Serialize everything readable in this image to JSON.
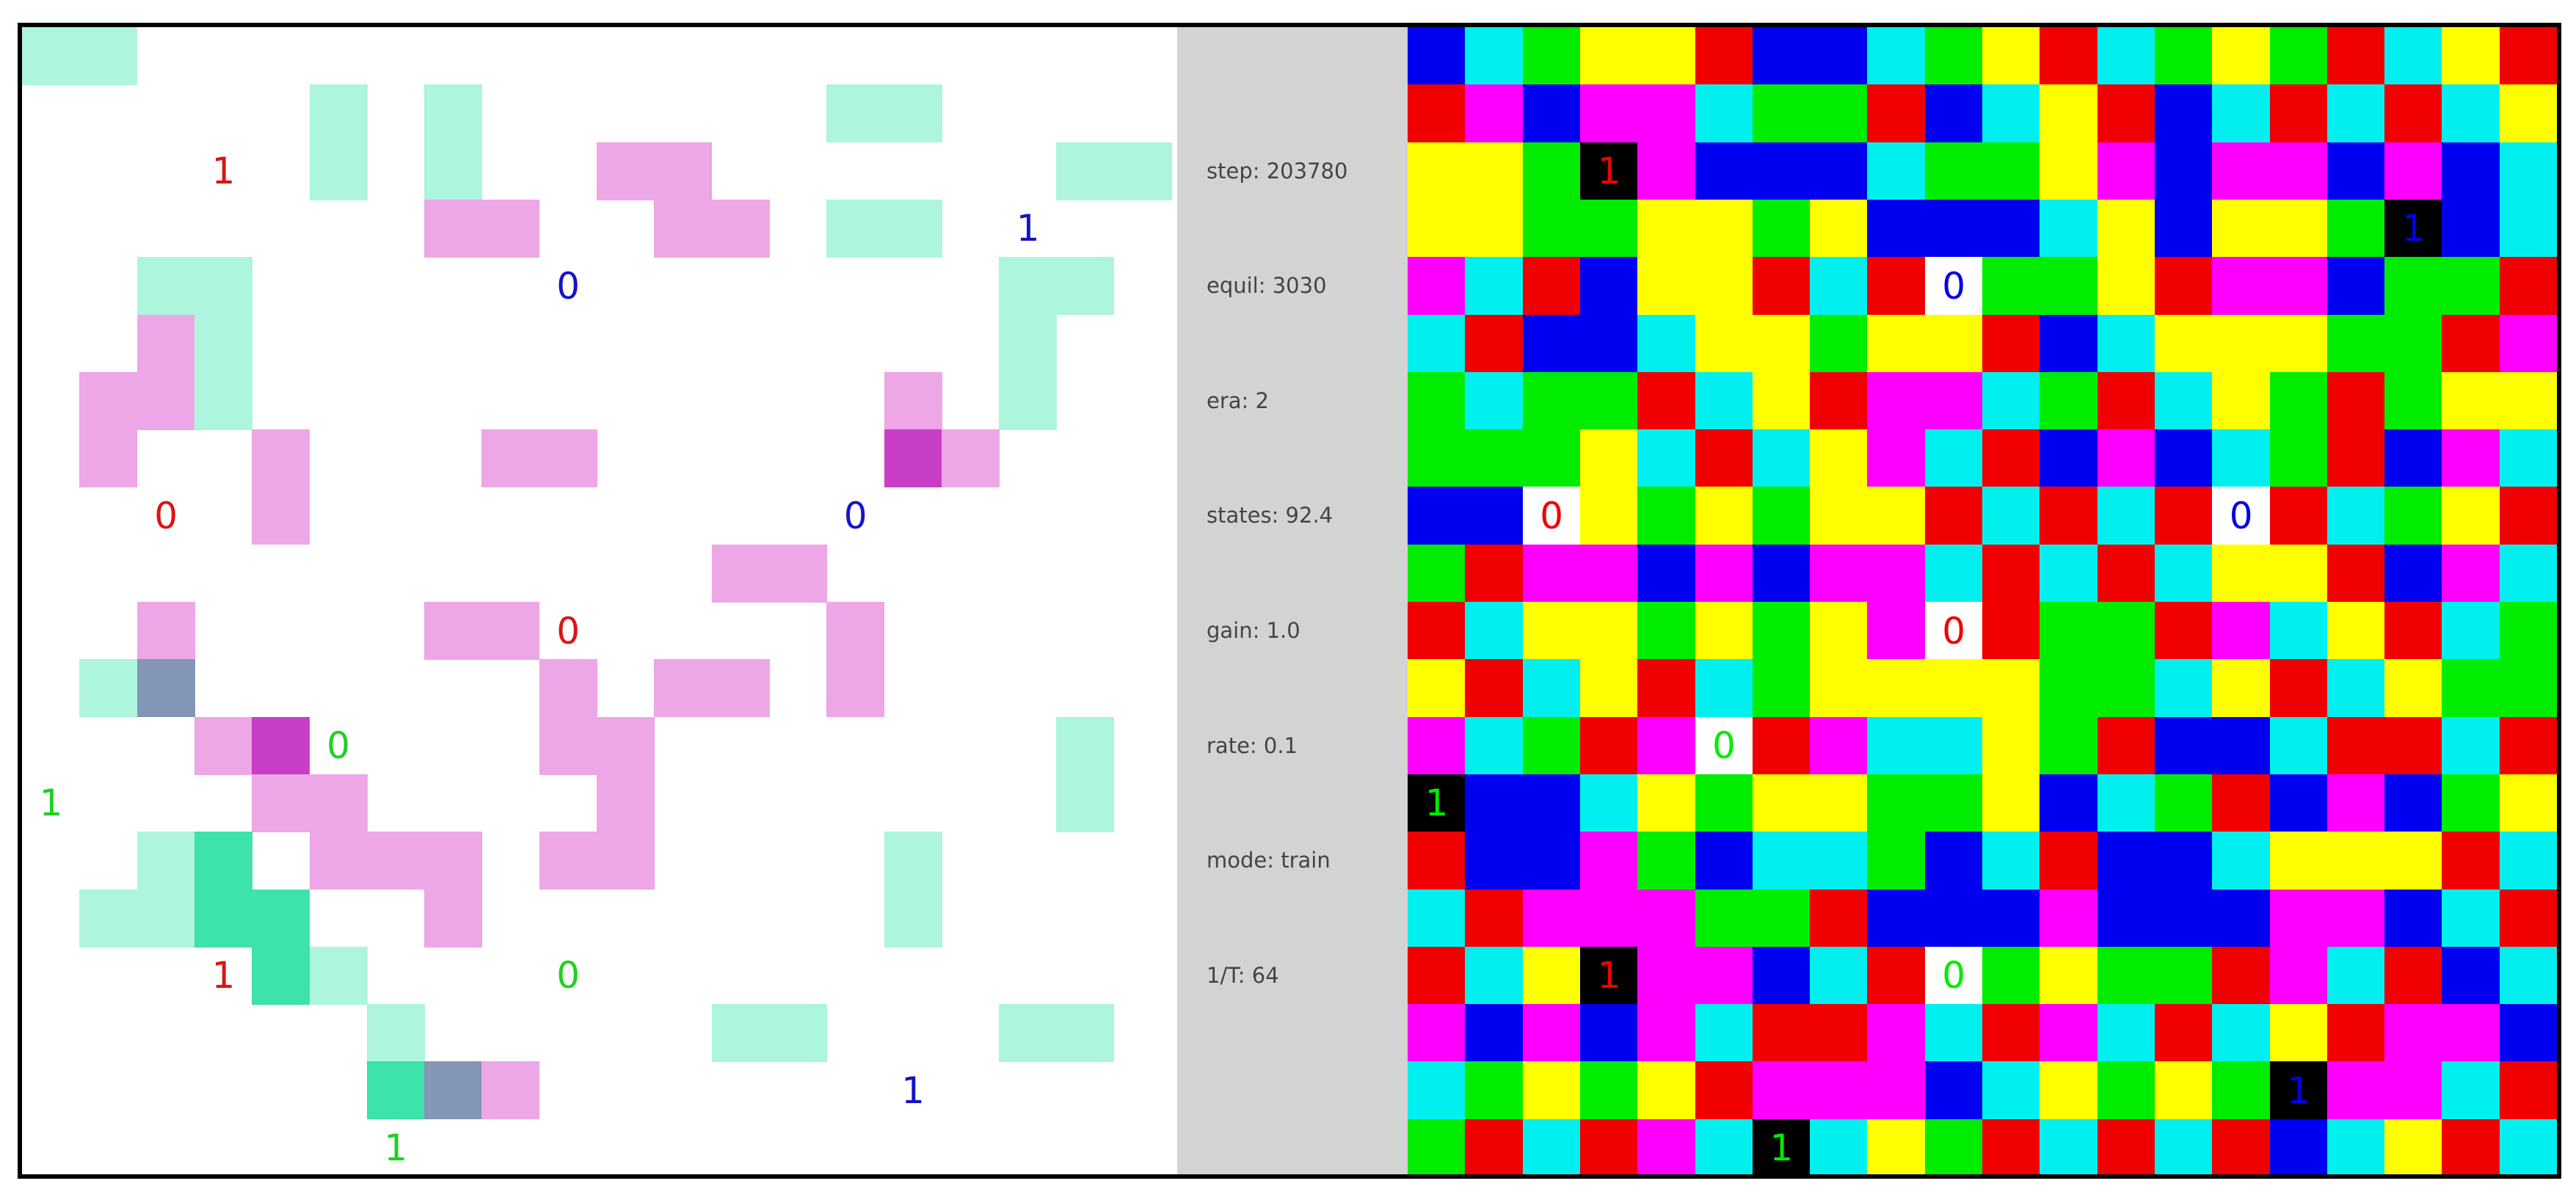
{
  "left_panel": {
    "colors": {
      "mint": "#adf5dc",
      "pink": "#eda6e6",
      "magenta": "#c83ec6",
      "slate": "#8496b5",
      "teal": "#3de3a8"
    },
    "cells": [
      [
        0,
        0,
        "mint"
      ],
      [
        1,
        0,
        "mint"
      ],
      [
        5,
        1,
        "mint"
      ],
      [
        7,
        1,
        "mint"
      ],
      [
        14,
        1,
        "mint"
      ],
      [
        15,
        1,
        "mint"
      ],
      [
        5,
        2,
        "mint"
      ],
      [
        7,
        2,
        "mint"
      ],
      [
        10,
        2,
        "pink"
      ],
      [
        11,
        2,
        "pink"
      ],
      [
        18,
        2,
        "mint"
      ],
      [
        19,
        2,
        "mint"
      ],
      [
        7,
        3,
        "pink"
      ],
      [
        8,
        3,
        "pink"
      ],
      [
        11,
        3,
        "pink"
      ],
      [
        12,
        3,
        "pink"
      ],
      [
        14,
        3,
        "mint"
      ],
      [
        15,
        3,
        "mint"
      ],
      [
        2,
        4,
        "mint"
      ],
      [
        3,
        4,
        "mint"
      ],
      [
        17,
        4,
        "mint"
      ],
      [
        18,
        4,
        "mint"
      ],
      [
        2,
        5,
        "pink"
      ],
      [
        3,
        5,
        "mint"
      ],
      [
        17,
        5,
        "mint"
      ],
      [
        1,
        6,
        "pink"
      ],
      [
        2,
        6,
        "pink"
      ],
      [
        3,
        6,
        "mint"
      ],
      [
        15,
        6,
        "pink"
      ],
      [
        17,
        6,
        "mint"
      ],
      [
        1,
        7,
        "pink"
      ],
      [
        4,
        7,
        "pink"
      ],
      [
        8,
        7,
        "pink"
      ],
      [
        9,
        7,
        "pink"
      ],
      [
        15,
        7,
        "magenta"
      ],
      [
        16,
        7,
        "pink"
      ],
      [
        4,
        8,
        "pink"
      ],
      [
        12,
        9,
        "pink"
      ],
      [
        13,
        9,
        "pink"
      ],
      [
        2,
        10,
        "pink"
      ],
      [
        7,
        10,
        "pink"
      ],
      [
        8,
        10,
        "pink"
      ],
      [
        14,
        10,
        "pink"
      ],
      [
        1,
        11,
        "mint"
      ],
      [
        2,
        11,
        "slate"
      ],
      [
        9,
        11,
        "pink"
      ],
      [
        11,
        11,
        "pink"
      ],
      [
        12,
        11,
        "pink"
      ],
      [
        14,
        11,
        "pink"
      ],
      [
        3,
        12,
        "pink"
      ],
      [
        4,
        12,
        "magenta"
      ],
      [
        9,
        12,
        "pink"
      ],
      [
        10,
        12,
        "pink"
      ],
      [
        18,
        12,
        "mint"
      ],
      [
        4,
        13,
        "pink"
      ],
      [
        5,
        13,
        "pink"
      ],
      [
        10,
        13,
        "pink"
      ],
      [
        18,
        13,
        "mint"
      ],
      [
        2,
        14,
        "mint"
      ],
      [
        3,
        14,
        "teal"
      ],
      [
        5,
        14,
        "pink"
      ],
      [
        6,
        14,
        "pink"
      ],
      [
        7,
        14,
        "pink"
      ],
      [
        9,
        14,
        "pink"
      ],
      [
        10,
        14,
        "pink"
      ],
      [
        15,
        14,
        "mint"
      ],
      [
        1,
        15,
        "mint"
      ],
      [
        2,
        15,
        "mint"
      ],
      [
        3,
        15,
        "teal"
      ],
      [
        4,
        15,
        "teal"
      ],
      [
        7,
        15,
        "pink"
      ],
      [
        15,
        15,
        "mint"
      ],
      [
        4,
        16,
        "teal"
      ],
      [
        5,
        16,
        "mint"
      ],
      [
        6,
        17,
        "mint"
      ],
      [
        12,
        17,
        "mint"
      ],
      [
        13,
        17,
        "mint"
      ],
      [
        17,
        17,
        "mint"
      ],
      [
        18,
        17,
        "mint"
      ],
      [
        6,
        18,
        "teal"
      ],
      [
        7,
        18,
        "slate"
      ],
      [
        8,
        18,
        "pink"
      ]
    ],
    "markers": [
      {
        "col": 3,
        "row": 2,
        "text": "1",
        "color": "#dc1414"
      },
      {
        "col": 17,
        "row": 3,
        "text": "1",
        "color": "#1414c8"
      },
      {
        "col": 9,
        "row": 4,
        "text": "0",
        "color": "#1414c8"
      },
      {
        "col": 2,
        "row": 8,
        "text": "0",
        "color": "#dc1414"
      },
      {
        "col": 14,
        "row": 8,
        "text": "0",
        "color": "#1414c8"
      },
      {
        "col": 9,
        "row": 10,
        "text": "0",
        "color": "#dc1414"
      },
      {
        "col": 5,
        "row": 12,
        "text": "0",
        "color": "#1ed21e"
      },
      {
        "col": 0,
        "row": 13,
        "text": "1",
        "color": "#1ed21e"
      },
      {
        "col": 3,
        "row": 16,
        "text": "1",
        "color": "#dc1414"
      },
      {
        "col": 9,
        "row": 16,
        "text": "0",
        "color": "#1ed21e"
      },
      {
        "col": 15,
        "row": 18,
        "text": "1",
        "color": "#1414c8"
      },
      {
        "col": 6,
        "row": 19,
        "text": "1",
        "color": "#1ed21e"
      }
    ]
  },
  "stats": [
    {
      "label": "step: 203780",
      "row": 2
    },
    {
      "label": "equil: 3030",
      "row": 4
    },
    {
      "label": "era: 2",
      "row": 6
    },
    {
      "label": "states: 92.4",
      "row": 8
    },
    {
      "label": "gain: 1.0",
      "row": 10
    },
    {
      "label": "rate: 0.1",
      "row": 12
    },
    {
      "label": "mode: train",
      "row": 14
    },
    {
      "label": "1/T: 64",
      "row": 16
    }
  ],
  "right_panel": {
    "palette": {
      "B": "#0000f0",
      "C": "#00f0f0",
      "G": "#00ec00",
      "Y": "#ffff00",
      "R": "#f00000",
      "M": "#ff00ff",
      "K": "#000000",
      "W": "#ffffff"
    },
    "grid": [
      "BCGYYRBBCGYRCGYGRCYR",
      "RMBMMCGGRBCYRBCRCRCY",
      "YYGKMBBBCGGYMBMMBMBC",
      "YYGGYYGYBBBCYBYYGKBC",
      "MCRBYYRCRWGGYRMMBGGR",
      "CRBBCYYGYYRBCYYYGGRM",
      "GCGGRCYRMMCGRCYGRGYY",
      "GGGYCRCYMCRBMBCGRBMC",
      "BBWYGYGYYRCRCRWRCGYR",
      "GRMMBMBMMCRCRCYYRBMC",
      "RCYYGYGYMWRGGRMCYRCG",
      "YRCYRCGYYYYGGCYRCYGG",
      "MCGRMWRMCCYGRBBCRRCR",
      "KBBCYGYYGGYBCGRBMBGY",
      "RBBMGBCCGBCRBBCYYYRC",
      "CRMMMGGRBBBMBBBMMBCR",
      "RCYKMMBCRWGYGGRMCRBC",
      "MBMBMCRRMCRMCRCYRMMB",
      "CGYGYRMMMBCYGYGKMMCR",
      "GRCRMCKCYGRCRCRBCYRC"
    ],
    "markers": [
      {
        "col": 3,
        "row": 2,
        "text": "1",
        "color": "#f00000"
      },
      {
        "col": 17,
        "row": 3,
        "text": "1",
        "color": "#0000f0"
      },
      {
        "col": 9,
        "row": 4,
        "text": "0",
        "color": "#0000f0"
      },
      {
        "col": 2,
        "row": 8,
        "text": "0",
        "color": "#f00000"
      },
      {
        "col": 14,
        "row": 8,
        "text": "0",
        "color": "#0000f0"
      },
      {
        "col": 9,
        "row": 10,
        "text": "0",
        "color": "#f00000"
      },
      {
        "col": 5,
        "row": 12,
        "text": "0",
        "color": "#00ec00"
      },
      {
        "col": 0,
        "row": 13,
        "text": "1",
        "color": "#00ec00"
      },
      {
        "col": 3,
        "row": 16,
        "text": "1",
        "color": "#f00000"
      },
      {
        "col": 9,
        "row": 16,
        "text": "0",
        "color": "#00ec00"
      },
      {
        "col": 15,
        "row": 18,
        "text": "1",
        "color": "#0000f0"
      },
      {
        "col": 6,
        "row": 19,
        "text": "1",
        "color": "#00ec00"
      }
    ]
  }
}
